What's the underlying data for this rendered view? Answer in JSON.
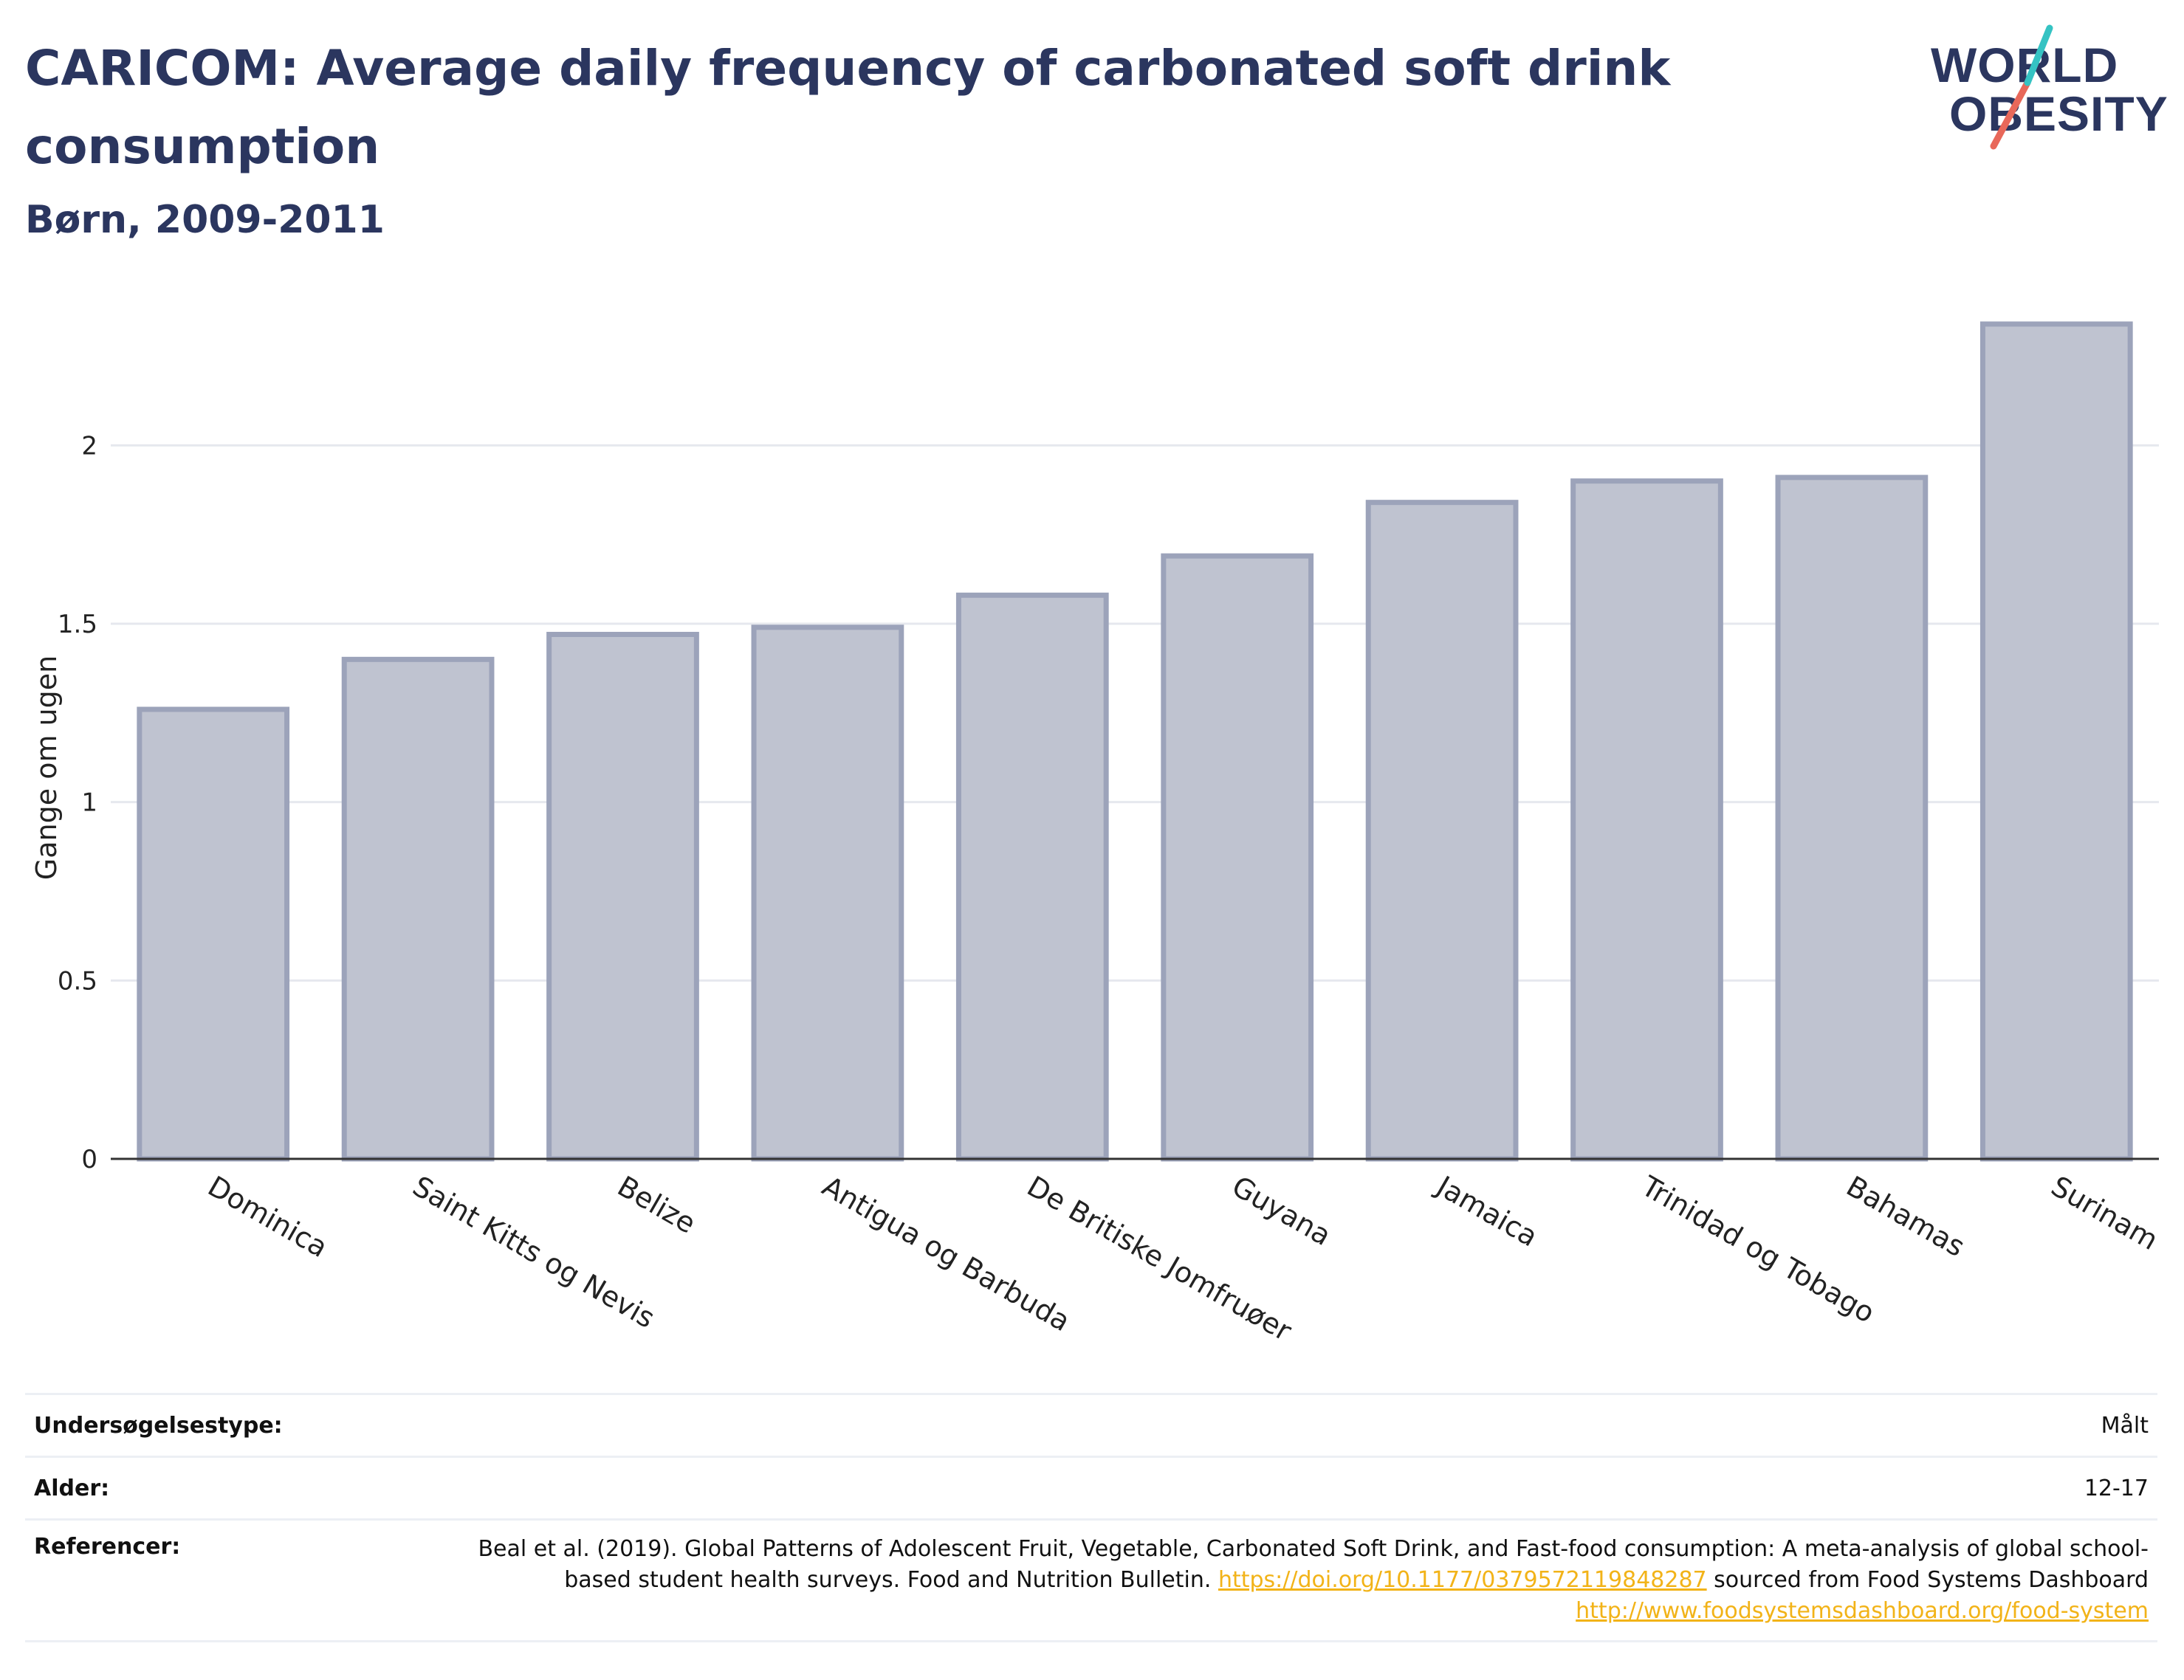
{
  "header": {
    "title": "CARICOM: Average daily frequency of carbonated soft drink consumption",
    "subtitle": "Børn, 2009-2011",
    "logo_line1": "WORLD",
    "logo_line2": "OBESITY"
  },
  "colors": {
    "bar_fill": "#bfc3d0",
    "bar_stroke": "#9ca3ba",
    "text": "#2b365f",
    "link": "#f2b318",
    "logo_teal": "#35c3c3",
    "logo_red": "#e8685a"
  },
  "chart_data": {
    "type": "bar",
    "title": "CARICOM: Average daily frequency of carbonated soft drink consumption",
    "subtitle": "Børn, 2009-2011",
    "xlabel": "",
    "ylabel": "Gange om ugen",
    "categories": [
      "Dominica",
      "Saint Kitts og Nevis",
      "Belize",
      "Antigua og Barbuda",
      "De Britiske Jomfruøer",
      "Guyana",
      "Jamaica",
      "Trinidad og Tobago",
      "Bahamas",
      "Surinam"
    ],
    "values": [
      1.26,
      1.4,
      1.47,
      1.49,
      1.58,
      1.69,
      1.84,
      1.9,
      1.91,
      2.34
    ],
    "ylim": [
      0,
      2.4
    ],
    "yticks": [
      0,
      0.5,
      1,
      1.5,
      2
    ],
    "ytick_labels": [
      "0",
      "0.5",
      "1",
      "1.5",
      "2"
    ],
    "grid": true,
    "legend": "none"
  },
  "meta": {
    "survey_label": "Undersøgelsestype:",
    "survey_value": "Målt",
    "age_label": "Alder:",
    "age_value": "12-17",
    "ref_label": "Referencer:",
    "ref_text1": "Beal et al. (2019). Global Patterns of Adolescent Fruit, Vegetable, Carbonated Soft Drink, and Fast-food consumption: A meta-analysis of global school-based student health surveys. Food and Nutrition Bulletin.",
    "ref_link1": "https://doi.org/10.1177/0379572119848287",
    "ref_text2": "sourced from Food Systems Dashboard",
    "ref_link2": "http://www.foodsystemsdashboard.org/food-system"
  }
}
